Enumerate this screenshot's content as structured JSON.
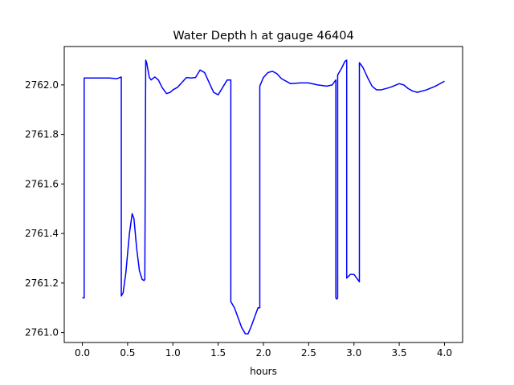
{
  "chart_data": {
    "type": "line",
    "title": "Water Depth h at gauge 46404",
    "xlabel": "hours",
    "ylabel": "",
    "xlim": [
      -0.2,
      4.2
    ],
    "ylim": [
      2760.96,
      2762.155
    ],
    "xticks": [
      0.0,
      0.5,
      1.0,
      1.5,
      2.0,
      2.5,
      3.0,
      3.5,
      4.0
    ],
    "xtick_labels": [
      "0.0",
      "0.5",
      "1.0",
      "1.5",
      "2.0",
      "2.5",
      "3.0",
      "3.5",
      "4.0"
    ],
    "yticks": [
      2761.0,
      2761.2,
      2761.4,
      2761.6,
      2761.8,
      2762.0
    ],
    "ytick_labels": [
      "2761.0",
      "2761.2",
      "2761.4",
      "2761.6",
      "2761.8",
      "2762.0"
    ],
    "grid": false,
    "series": [
      {
        "color": "#0000ff",
        "x": [
          0.0,
          0.02,
          0.02,
          0.1,
          0.2,
          0.3,
          0.38,
          0.43,
          0.43,
          0.45,
          0.48,
          0.52,
          0.55,
          0.57,
          0.6,
          0.63,
          0.66,
          0.68,
          0.69,
          0.7,
          0.71,
          0.74,
          0.76,
          0.8,
          0.84,
          0.88,
          0.93,
          0.97,
          1.0,
          1.05,
          1.1,
          1.15,
          1.2,
          1.25,
          1.3,
          1.35,
          1.4,
          1.45,
          1.5,
          1.55,
          1.6,
          1.63,
          1.64,
          1.64,
          1.68,
          1.72,
          1.76,
          1.8,
          1.83,
          1.86,
          1.9,
          1.94,
          1.96,
          1.96,
          2.0,
          2.05,
          2.1,
          2.15,
          2.2,
          2.3,
          2.4,
          2.5,
          2.6,
          2.7,
          2.76,
          2.8,
          2.8,
          2.81,
          2.82,
          2.82,
          2.86,
          2.9,
          2.92,
          2.92,
          2.96,
          3.0,
          3.03,
          3.05,
          3.06,
          3.06,
          3.1,
          3.15,
          3.2,
          3.25,
          3.3,
          3.4,
          3.5,
          3.55,
          3.6,
          3.65,
          3.7,
          3.8,
          3.9,
          4.0
        ],
        "y": [
          2761.14,
          2761.14,
          2762.028,
          2762.028,
          2762.028,
          2762.028,
          2762.025,
          2762.032,
          2761.148,
          2761.16,
          2761.24,
          2761.4,
          2761.48,
          2761.46,
          2761.34,
          2761.25,
          2761.215,
          2761.21,
          2761.215,
          2762.1,
          2762.09,
          2762.03,
          2762.02,
          2762.032,
          2762.02,
          2761.99,
          2761.965,
          2761.97,
          2761.98,
          2761.99,
          2762.01,
          2762.03,
          2762.028,
          2762.03,
          2762.06,
          2762.05,
          2762.01,
          2761.97,
          2761.96,
          2761.99,
          2762.02,
          2762.02,
          2762.02,
          2761.125,
          2761.1,
          2761.06,
          2761.02,
          2760.995,
          2760.995,
          2761.02,
          2761.06,
          2761.1,
          2761.1,
          2761.995,
          2762.03,
          2762.05,
          2762.055,
          2762.045,
          2762.025,
          2762.005,
          2762.008,
          2762.008,
          2762.0,
          2761.995,
          2762.0,
          2762.02,
          2761.14,
          2761.135,
          2761.14,
          2762.04,
          2762.065,
          2762.095,
          2762.1,
          2761.22,
          2761.235,
          2761.235,
          2761.22,
          2761.21,
          2761.205,
          2762.09,
          2762.07,
          2762.03,
          2761.995,
          2761.98,
          2761.98,
          2761.99,
          2762.005,
          2762.0,
          2761.985,
          2761.975,
          2761.97,
          2761.98,
          2761.995,
          2762.015
        ]
      }
    ]
  }
}
